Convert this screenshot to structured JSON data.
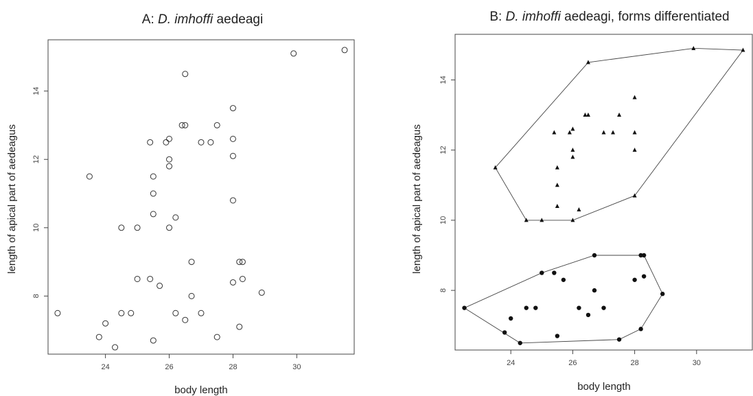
{
  "chart_data": [
    {
      "type": "scatter",
      "title_prefix": "A: ",
      "title_species": "D. imhoffi",
      "title_suffix": " aedeagi",
      "xlabel": "body length",
      "ylabel": "length of apical part of aedeagus",
      "xlim": [
        22.2,
        31.8
      ],
      "ylim": [
        6.3,
        15.5
      ],
      "xticks": [
        24,
        26,
        28,
        30
      ],
      "yticks": [
        8,
        10,
        12,
        14
      ],
      "marker": "open-circle",
      "series": [
        {
          "points": [
            [
              22.5,
              7.5
            ],
            [
              23.5,
              11.5
            ],
            [
              23.8,
              6.8
            ],
            [
              24.0,
              7.2
            ],
            [
              24.3,
              6.5
            ],
            [
              24.5,
              7.5
            ],
            [
              24.5,
              10.0
            ],
            [
              24.8,
              7.5
            ],
            [
              25.0,
              8.5
            ],
            [
              25.0,
              10.0
            ],
            [
              25.4,
              8.5
            ],
            [
              25.4,
              12.5
            ],
            [
              25.5,
              6.7
            ],
            [
              25.5,
              10.4
            ],
            [
              25.5,
              11.0
            ],
            [
              25.5,
              11.5
            ],
            [
              25.7,
              8.3
            ],
            [
              25.9,
              12.5
            ],
            [
              26.0,
              10.0
            ],
            [
              26.0,
              11.8
            ],
            [
              26.0,
              12.0
            ],
            [
              26.0,
              12.6
            ],
            [
              26.2,
              7.5
            ],
            [
              26.2,
              10.3
            ],
            [
              26.4,
              13.0
            ],
            [
              26.5,
              7.3
            ],
            [
              26.5,
              13.0
            ],
            [
              26.5,
              14.5
            ],
            [
              26.7,
              8.0
            ],
            [
              26.7,
              9.0
            ],
            [
              27.0,
              7.5
            ],
            [
              27.0,
              12.5
            ],
            [
              27.3,
              12.5
            ],
            [
              27.5,
              6.8
            ],
            [
              27.5,
              13.0
            ],
            [
              28.0,
              8.4
            ],
            [
              28.0,
              10.8
            ],
            [
              28.0,
              12.1
            ],
            [
              28.0,
              12.6
            ],
            [
              28.0,
              13.5
            ],
            [
              28.2,
              7.1
            ],
            [
              28.2,
              9.0
            ],
            [
              28.3,
              8.5
            ],
            [
              28.3,
              9.0
            ],
            [
              28.9,
              8.1
            ],
            [
              29.9,
              15.1
            ],
            [
              31.5,
              15.2
            ]
          ]
        }
      ]
    },
    {
      "type": "scatter",
      "title_prefix": "B: ",
      "title_species": "D. imhoffi",
      "title_suffix": " aedeagi, forms differentiated",
      "xlabel": "body length",
      "ylabel": "length of apical part of aedeagus",
      "xlim": [
        22.2,
        31.8
      ],
      "ylim": [
        6.3,
        15.3
      ],
      "xticks": [
        24,
        26,
        28,
        30
      ],
      "yticks": [
        8,
        10,
        12,
        14
      ],
      "series": [
        {
          "marker": "filled-triangle",
          "points": [
            [
              23.5,
              11.5
            ],
            [
              24.5,
              10.0
            ],
            [
              25.0,
              10.0
            ],
            [
              25.4,
              12.5
            ],
            [
              25.5,
              10.4
            ],
            [
              25.5,
              11.0
            ],
            [
              25.5,
              11.5
            ],
            [
              25.9,
              12.5
            ],
            [
              26.0,
              10.0
            ],
            [
              26.0,
              11.8
            ],
            [
              26.0,
              12.0
            ],
            [
              26.0,
              12.6
            ],
            [
              26.2,
              10.3
            ],
            [
              26.4,
              13.0
            ],
            [
              26.5,
              13.0
            ],
            [
              26.5,
              14.5
            ],
            [
              27.0,
              12.5
            ],
            [
              27.3,
              12.5
            ],
            [
              27.5,
              13.0
            ],
            [
              28.0,
              10.7
            ],
            [
              28.0,
              12.0
            ],
            [
              28.0,
              12.5
            ],
            [
              28.0,
              13.5
            ],
            [
              29.9,
              14.9
            ],
            [
              31.5,
              14.85
            ]
          ],
          "hull": [
            [
              23.5,
              11.5
            ],
            [
              24.5,
              10.0
            ],
            [
              26.0,
              10.0
            ],
            [
              28.0,
              10.7
            ],
            [
              31.5,
              14.85
            ],
            [
              29.9,
              14.9
            ],
            [
              26.5,
              14.5
            ]
          ]
        },
        {
          "marker": "filled-circle",
          "points": [
            [
              22.5,
              7.5
            ],
            [
              23.8,
              6.8
            ],
            [
              24.0,
              7.2
            ],
            [
              24.3,
              6.5
            ],
            [
              24.5,
              7.5
            ],
            [
              24.8,
              7.5
            ],
            [
              25.0,
              8.5
            ],
            [
              25.4,
              8.5
            ],
            [
              25.5,
              6.7
            ],
            [
              25.7,
              8.3
            ],
            [
              26.2,
              7.5
            ],
            [
              26.5,
              7.3
            ],
            [
              26.7,
              8.0
            ],
            [
              26.7,
              9.0
            ],
            [
              27.0,
              7.5
            ],
            [
              27.5,
              6.6
            ],
            [
              28.0,
              8.3
            ],
            [
              28.2,
              6.9
            ],
            [
              28.2,
              9.0
            ],
            [
              28.3,
              8.4
            ],
            [
              28.3,
              9.0
            ],
            [
              28.9,
              7.9
            ]
          ],
          "hull": [
            [
              22.5,
              7.5
            ],
            [
              24.3,
              6.5
            ],
            [
              27.5,
              6.6
            ],
            [
              28.2,
              6.9
            ],
            [
              28.9,
              7.9
            ],
            [
              28.3,
              9.0
            ],
            [
              26.7,
              9.0
            ],
            [
              25.0,
              8.5
            ]
          ]
        }
      ]
    }
  ]
}
